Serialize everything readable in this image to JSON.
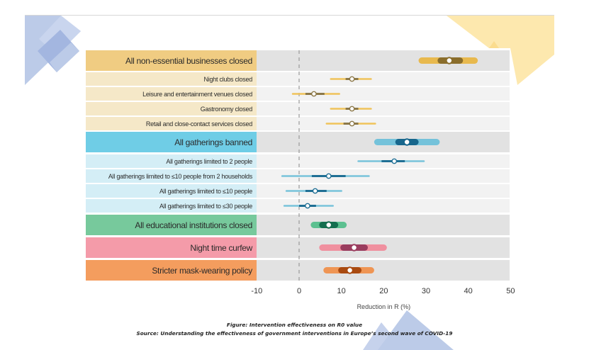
{
  "chart_data": {
    "type": "forest",
    "title": "",
    "xlabel": "Reduction in R (%)",
    "ylabel": "",
    "xlim": [
      -10,
      50
    ],
    "xticks": [
      -10,
      0,
      10,
      20,
      30,
      40,
      50
    ],
    "reference_line": 0,
    "grid": false,
    "rows": [
      {
        "label": "All non-essential businesses closed",
        "group": "business",
        "level": "main",
        "point": 35.5,
        "inner": [
          33.5,
          38
        ],
        "outer": [
          29,
          41.5
        ]
      },
      {
        "label": "Night clubs closed",
        "group": "business",
        "level": "sub",
        "point": 12.5,
        "inner": [
          11,
          14
        ],
        "outer": [
          7.5,
          17
        ]
      },
      {
        "label": "Leisure and entertainment venues closed",
        "group": "business",
        "level": "sub",
        "point": 3.5,
        "inner": [
          1.5,
          6
        ],
        "outer": [
          -1.5,
          9.5
        ]
      },
      {
        "label": "Gastronomy closed",
        "group": "business",
        "level": "sub",
        "point": 12.5,
        "inner": [
          11,
          14
        ],
        "outer": [
          7.5,
          17
        ]
      },
      {
        "label": "Retail and close-contact services closed",
        "group": "business",
        "level": "sub",
        "point": 12.5,
        "inner": [
          10.5,
          14
        ],
        "outer": [
          6.5,
          18
        ]
      },
      {
        "label": "All gatherings banned",
        "group": "gatherings",
        "level": "main",
        "point": 25.5,
        "inner": [
          23.5,
          27.5
        ],
        "outer": [
          18.5,
          32.5
        ]
      },
      {
        "label": "All gatherings limited to 2 people",
        "group": "gatherings",
        "level": "sub",
        "point": 22.5,
        "inner": [
          19.5,
          25
        ],
        "outer": [
          14,
          29.5
        ]
      },
      {
        "label": "All gatherings limited to ≤10 people from 2 households",
        "group": "gatherings",
        "level": "sub",
        "point": 7,
        "inner": [
          3,
          11
        ],
        "outer": [
          -4,
          16.5
        ]
      },
      {
        "label": "All gatherings limited to ≤10 people",
        "group": "gatherings",
        "level": "sub",
        "point": 3.8,
        "inner": [
          1.5,
          6.5
        ],
        "outer": [
          -3,
          10
        ]
      },
      {
        "label": "All gatherings limited to ≤30 people",
        "group": "gatherings",
        "level": "sub",
        "point": 2,
        "inner": [
          0,
          4
        ],
        "outer": [
          -3.5,
          8
        ]
      },
      {
        "label": "All educational institutions closed",
        "group": "education",
        "level": "main",
        "point": 7,
        "inner": [
          5.5,
          8.5
        ],
        "outer": [
          3.5,
          10.5
        ]
      },
      {
        "label": "Night time curfew",
        "group": "curfew",
        "level": "main",
        "point": 13,
        "inner": [
          10.5,
          15.5
        ],
        "outer": [
          5.5,
          20
        ]
      },
      {
        "label": "Stricter mask-wearing policy",
        "group": "mask",
        "level": "main",
        "point": 12,
        "inner": [
          10,
          14
        ],
        "outer": [
          6.5,
          17
        ]
      }
    ],
    "groups": {
      "business": {
        "main_label_bg": "#f0cc82",
        "sub_label_bg": "#f5e8c8",
        "outer": "#e8b94e",
        "inner": "#8a6d2b",
        "sub_outer": "#f0c35a",
        "sub_inner": "#8c7848"
      },
      "gatherings": {
        "main_label_bg": "#6fcde6",
        "sub_label_bg": "#d4eef6",
        "outer": "#74c2da",
        "inner": "#17668c",
        "sub_outer": "#78c3da",
        "sub_inner": "#1f6f94"
      },
      "education": {
        "main_label_bg": "#77c99c",
        "outer": "#5cc090",
        "inner": "#146e4f"
      },
      "curfew": {
        "main_label_bg": "#f49ba9",
        "outer": "#f0909f",
        "inner": "#9a3c5e"
      },
      "mask": {
        "main_label_bg": "#f49d5e",
        "outer": "#ef9554",
        "inner": "#a94a10"
      }
    }
  },
  "caption": {
    "figure": "Figure: Intervention effectiveness on R0 value",
    "source": "Source: Understanding the effectiveness of government interventions in Europe’s second wave of COVID-19"
  }
}
